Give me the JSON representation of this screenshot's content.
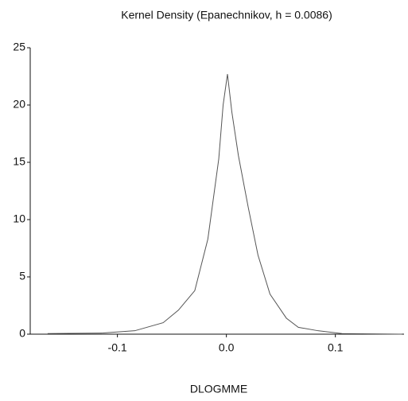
{
  "chart_data": {
    "type": "line",
    "title": "Kernel Density (Epanechnikov, h = 0.0086)",
    "x_label": "DLOGMME",
    "x": [
      -0.164,
      -0.113,
      -0.084,
      -0.058,
      -0.044,
      -0.029,
      -0.017,
      -0.007,
      -0.003,
      0.001,
      0.005,
      0.011,
      0.02,
      0.029,
      0.04,
      0.055,
      0.066,
      0.084,
      0.106,
      0.161
    ],
    "values": [
      0.05,
      0.1,
      0.3,
      1.0,
      2.1,
      3.8,
      8.3,
      15.3,
      20,
      22.7,
      19.4,
      15.6,
      11.1,
      6.9,
      3.5,
      1.4,
      0.6,
      0.3,
      0.05,
      0
    ],
    "color": "#555555",
    "xlim": [
      -0.18,
      0.163
    ],
    "ylim": [
      0,
      25
    ],
    "xticks": [
      -0.1,
      {
        "value": 0,
        "label": "0.0"
      },
      0.1
    ],
    "yticks": [
      0,
      5,
      10,
      15,
      20,
      25
    ]
  }
}
